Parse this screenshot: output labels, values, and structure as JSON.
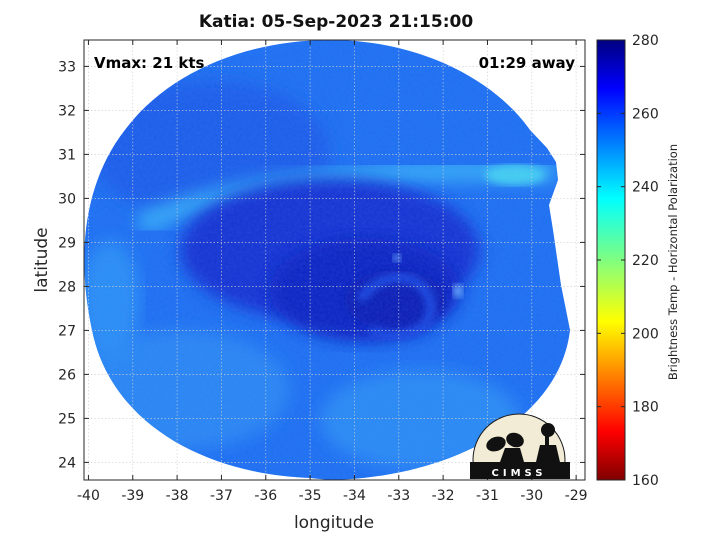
{
  "chart_data": {
    "type": "heatmap",
    "title": "Katia: 05-Sep-2023 21:15:00",
    "xlabel": "longitude",
    "ylabel": "latitude",
    "xlim": [
      -40.1,
      -28.8
    ],
    "ylim": [
      23.6,
      33.6
    ],
    "x_ticks": [
      "-40",
      "-39",
      "-38",
      "-37",
      "-36",
      "-35",
      "-34",
      "-33",
      "-32",
      "-31",
      "-30",
      "-29"
    ],
    "y_ticks": [
      "24",
      "25",
      "26",
      "27",
      "28",
      "29",
      "30",
      "31",
      "32",
      "33"
    ],
    "grid": true,
    "annotations": {
      "vmax": "Vmax: 21 kts",
      "away": "01:29 away"
    },
    "colorbar": {
      "label": "Brightness Temp - Horizontal Polarization",
      "range": [
        160,
        280
      ],
      "ticks": [
        "160",
        "180",
        "200",
        "220",
        "240",
        "260",
        "280"
      ],
      "colormap": "jet"
    },
    "storm_center": {
      "lon": -33.8,
      "lat": 28.0
    },
    "logo_text": "CIMSS"
  }
}
